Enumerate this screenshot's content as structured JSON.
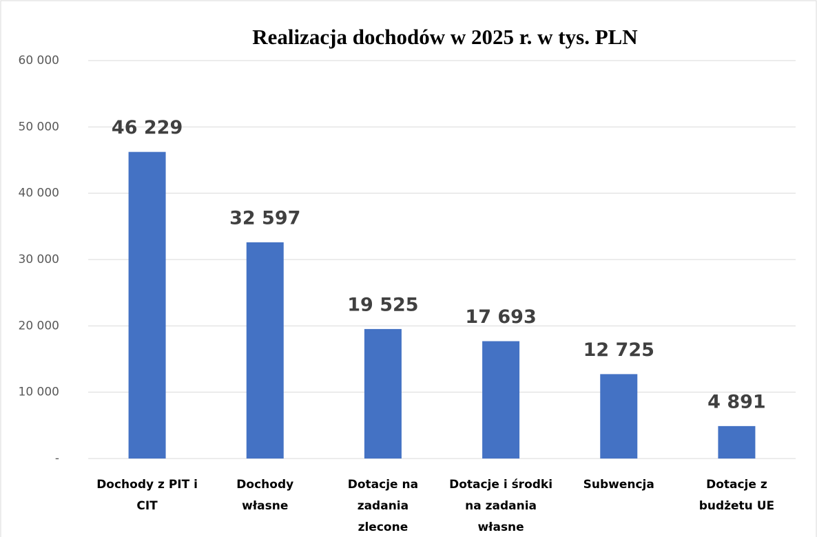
{
  "chart_data": {
    "type": "bar",
    "title": "Realizacja dochodów w 2025 r. w tys. PLN",
    "categories": [
      "Dochody z PIT i CIT",
      "Dochody własne",
      "Dotacje na zadania zlecone",
      "Dotacje i środki na zadania własne",
      "Subwencja",
      "Dotacje z budżetu UE"
    ],
    "values": [
      46229,
      32597,
      19525,
      17693,
      12725,
      4891
    ],
    "value_labels": [
      "46 229",
      "32 597",
      "19 525",
      "17 693",
      "12 725",
      "4 891"
    ],
    "color": "#4472c4",
    "ylim": [
      0,
      60000
    ],
    "yticks": [
      {
        "value": 0,
        "label": "-"
      },
      {
        "value": 10000,
        "label": "10 000"
      },
      {
        "value": 20000,
        "label": "20 000"
      },
      {
        "value": 30000,
        "label": "30 000"
      },
      {
        "value": 40000,
        "label": "40 000"
      },
      {
        "value": 50000,
        "label": "50 000"
      },
      {
        "value": 60000,
        "label": "60 000"
      }
    ],
    "grid": true
  }
}
